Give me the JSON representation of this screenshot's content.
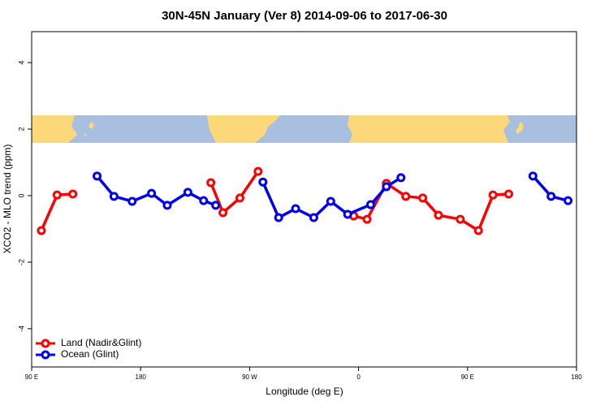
{
  "chart_data": {
    "type": "line",
    "title": "30N-45N January (Ver 8)   2014-09-06 to 2017-06-30",
    "x_label": "Longitude (deg E)",
    "y_label": "XCO2 - MLO trend (ppm)",
    "xlim": [
      90,
      540
    ],
    "ylim": [
      -5.15,
      4.93
    ],
    "xticks": [
      {
        "value": 90,
        "label": "90 E"
      },
      180,
      {
        "value": 270,
        "label": "90 W"
      },
      {
        "value": 360,
        "label": "0"
      },
      {
        "value": 450,
        "label": "90 E"
      },
      {
        "value": 540,
        "label": "180"
      }
    ],
    "yticks": [
      -4,
      -2,
      0,
      2,
      4
    ],
    "legend": "bottom-left",
    "series": [
      {
        "name": "Land (Nadir&Glint)",
        "color": "#ff0000",
        "x": [
          98,
          111,
          124,
          null,
          238,
          248,
          262,
          277,
          null,
          356,
          367,
          383,
          399,
          413,
          426,
          444,
          459,
          471,
          484
        ],
        "values": [
          -1.05,
          0.02,
          0.05,
          null,
          0.39,
          -0.51,
          -0.07,
          0.73,
          null,
          -0.61,
          -0.71,
          0.37,
          -0.02,
          -0.07,
          -0.59,
          -0.71,
          -1.05,
          0.02,
          0.05
        ]
      },
      {
        "name": "Ocean (Glint)",
        "color": "#0000ee",
        "x": [
          144,
          158,
          173,
          189,
          202,
          219,
          232,
          242,
          null,
          281,
          294,
          308,
          323,
          337,
          351,
          370,
          383,
          395,
          null,
          504,
          519,
          533
        ],
        "values": [
          0.59,
          -0.02,
          -0.17,
          0.07,
          -0.29,
          0.1,
          -0.15,
          -0.29,
          null,
          0.41,
          -0.66,
          -0.39,
          -0.66,
          -0.17,
          -0.56,
          -0.27,
          0.27,
          0.54,
          null,
          0.59,
          -0.02,
          -0.15
        ]
      }
    ]
  }
}
